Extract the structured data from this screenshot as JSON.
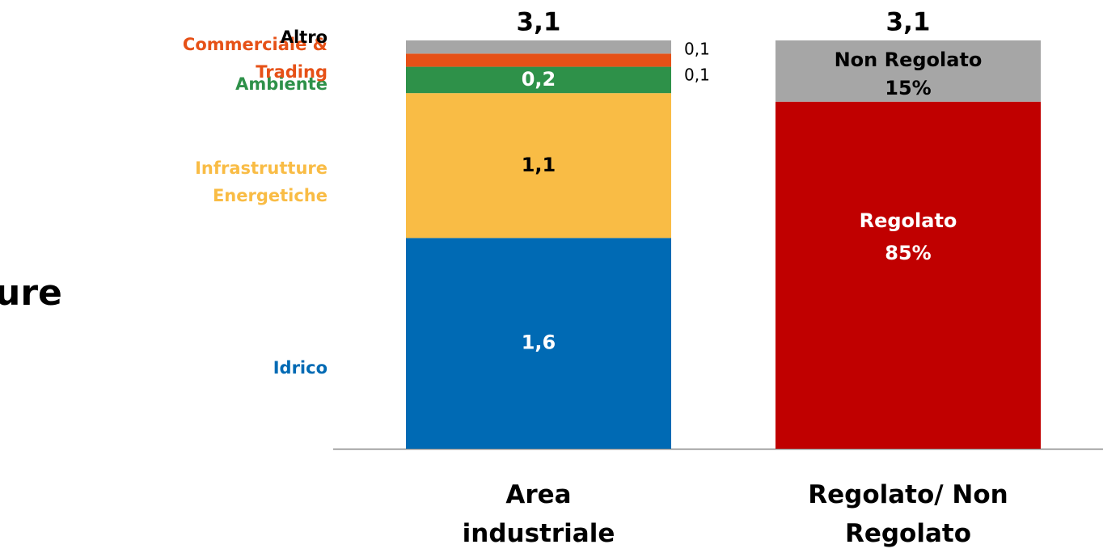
{
  "page_text": "ure",
  "chart_data": {
    "type": "stacked_bar",
    "bars": [
      {
        "category": "Area industriale",
        "ylim": [
          0,
          3.1
        ],
        "total": 3.1,
        "total_label": "3,1",
        "segments": [
          {
            "name": "Idrico",
            "color": "#006ab4",
            "name_color": "#006ab4",
            "label_color": "#ffffff",
            "label_position": "inside",
            "value": 1.6,
            "value_label": "1,6"
          },
          {
            "name": "Infrastrutture Energetiche",
            "color": "#f9bc45",
            "name_color": "#f9bc45",
            "label_color": "#000000",
            "label_position": "inside",
            "value": 1.1,
            "value_label": "1,1"
          },
          {
            "name": "Ambiente",
            "color": "#2e9149",
            "name_color": "#2e9149",
            "label_color": "#ffffff",
            "label_position": "inside",
            "value": 0.2,
            "value_label": "0,2"
          },
          {
            "name": "Commerciale & Trading",
            "color": "#e65117",
            "name_color": "#e65117",
            "label_color": "#000000",
            "label_position": "outside",
            "value": 0.1,
            "value_label": "0,1"
          },
          {
            "name": "Altro",
            "color": "#a6a6a6",
            "name_color": "#000000",
            "label_color": "#000000",
            "label_position": "outside",
            "value": 0.1,
            "value_label": "0,1"
          }
        ]
      },
      {
        "category": "Regolato/ Non Regolato",
        "ylim": [
          0,
          100
        ],
        "total": 3.1,
        "total_label": "3,1",
        "segments": [
          {
            "name": "Regolato",
            "color": "#c00000",
            "label_color": "#ffffff",
            "label_position": "inside",
            "value": 85,
            "value_label": "85%"
          },
          {
            "name": "Non Regolato",
            "color": "#a6a6a6",
            "label_color": "#000000",
            "label_position": "inside",
            "value": 15,
            "value_label": "15%"
          }
        ]
      }
    ]
  }
}
